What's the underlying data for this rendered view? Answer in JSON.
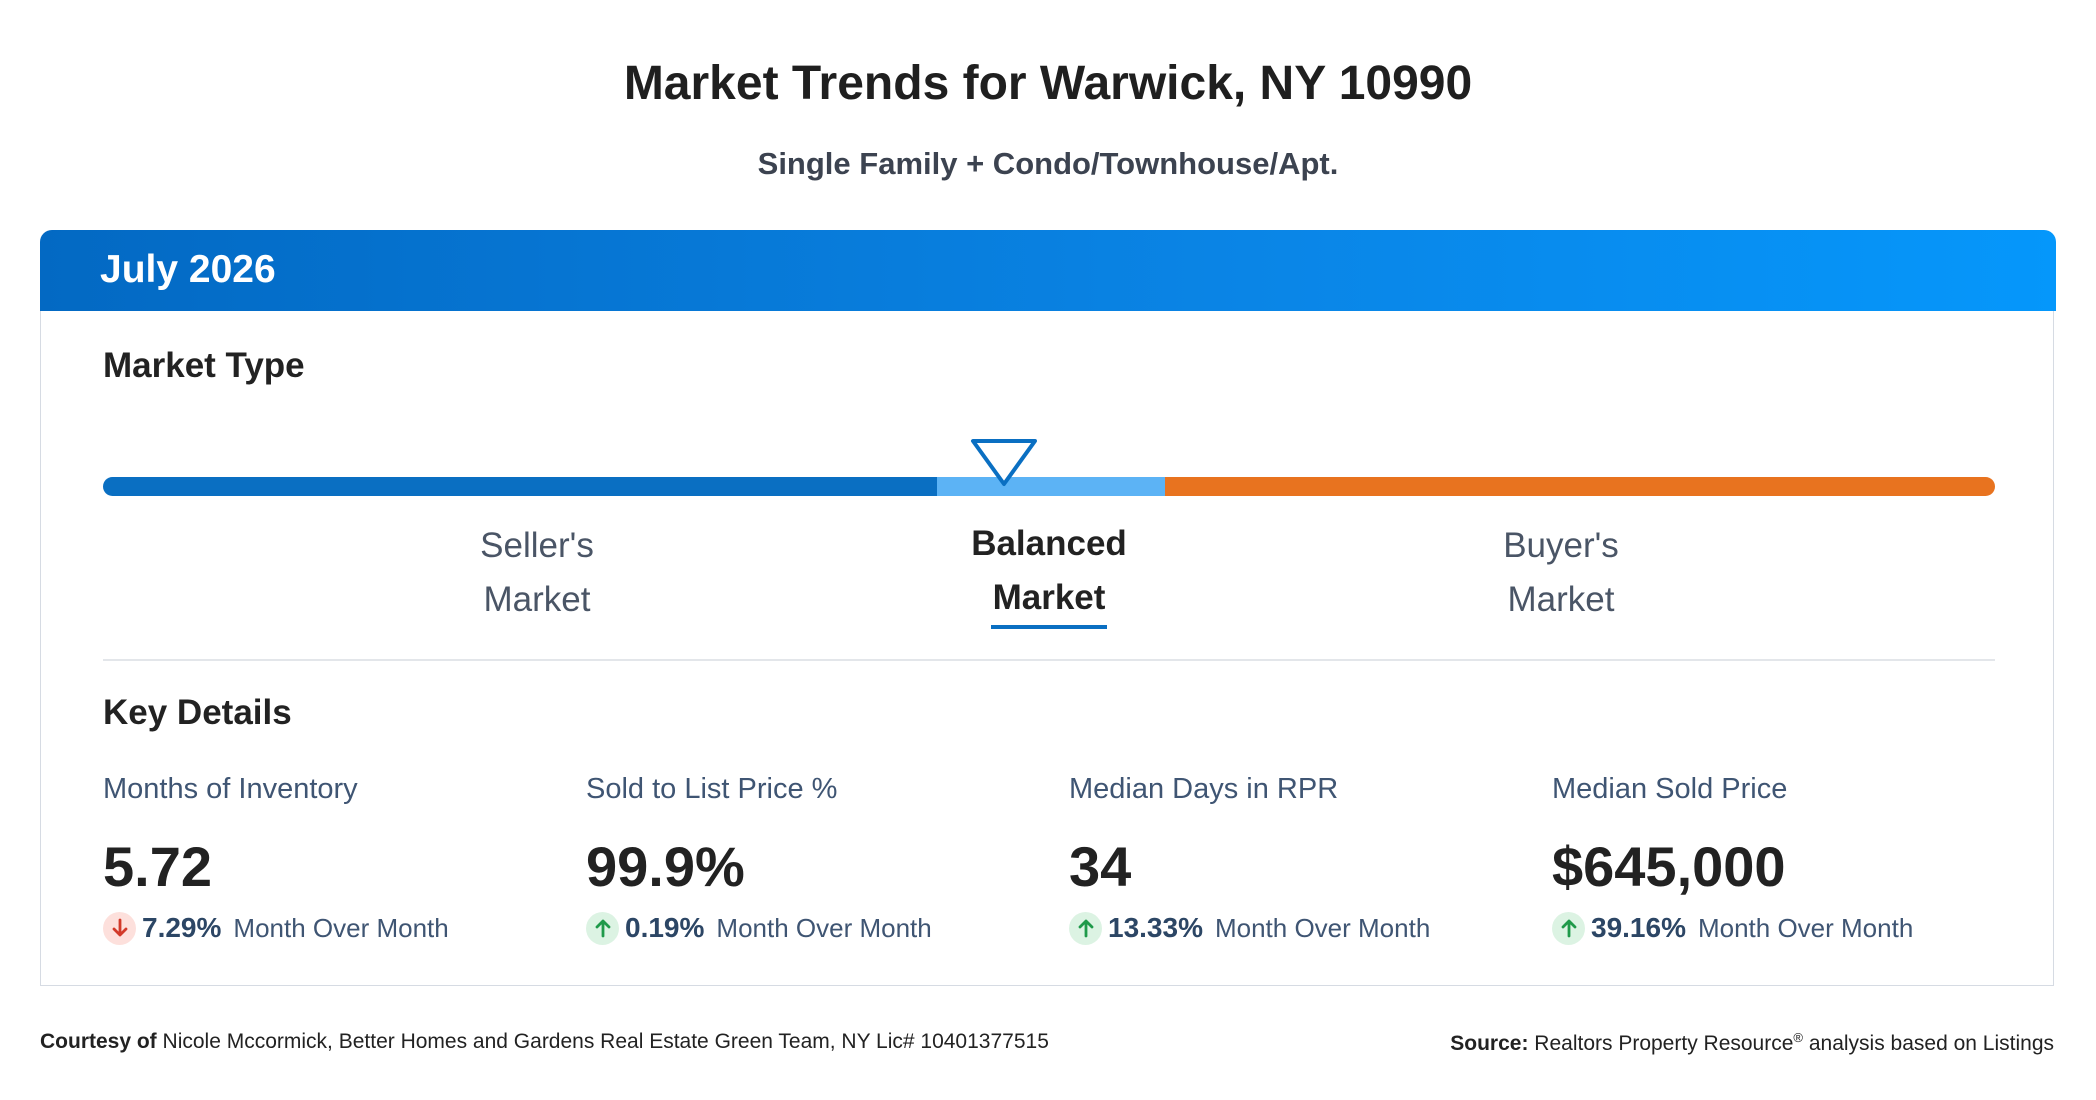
{
  "header": {
    "title": "Market Trends for Warwick, NY 10990",
    "subtitle": "Single Family + Condo/Townhouse/Apt."
  },
  "card": {
    "period": "July 2026",
    "market_type": {
      "heading": "Market Type",
      "labels": {
        "seller_line1": "Seller's",
        "seller_line2": "Market",
        "balanced_line1": "Balanced",
        "balanced_line2": "Market",
        "buyer_line1": "Buyer's",
        "buyer_line2": "Market"
      },
      "selected": "Balanced Market",
      "colors": {
        "seller": "#0a6fc2",
        "balanced": "#5cb3f5",
        "buyer": "#e8731f",
        "header_gradient_start": "#0369c3",
        "header_gradient_end": "#0597fb"
      }
    },
    "key_details": {
      "heading": "Key Details",
      "stats": [
        {
          "label": "Months of Inventory",
          "value": "5.72",
          "change": "7.29%",
          "direction": "down",
          "change_text": "Month Over Month"
        },
        {
          "label": "Sold to List Price %",
          "value": "99.9%",
          "change": "0.19%",
          "direction": "up",
          "change_text": "Month Over Month"
        },
        {
          "label": "Median Days in RPR",
          "value": "34",
          "change": "13.33%",
          "direction": "up",
          "change_text": "Month Over Month"
        },
        {
          "label": "Median Sold Price",
          "value": "$645,000",
          "change": "39.16%",
          "direction": "up",
          "change_text": "Month Over Month"
        }
      ]
    }
  },
  "footer": {
    "courtesy_label": "Courtesy of",
    "courtesy_text": "Nicole Mccormick, Better Homes and Gardens Real Estate Green Team, NY Lic# 10401377515",
    "source_label": "Source:",
    "source_text_1": "Realtors Property Resource",
    "source_mark": "®",
    "source_text_2": "analysis based on Listings"
  }
}
